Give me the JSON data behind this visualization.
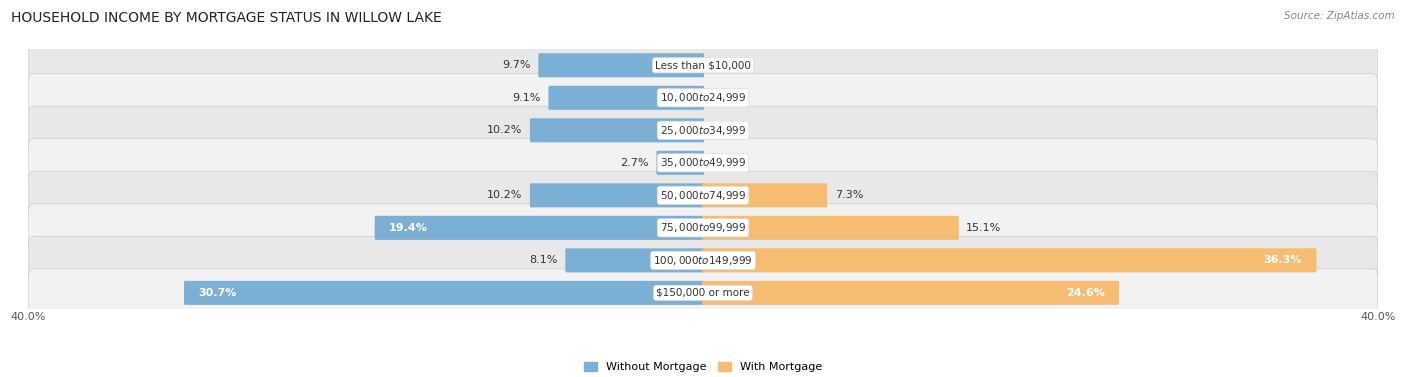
{
  "title": "HOUSEHOLD INCOME BY MORTGAGE STATUS IN WILLOW LAKE",
  "source": "Source: ZipAtlas.com",
  "categories": [
    "Less than $10,000",
    "$10,000 to $24,999",
    "$25,000 to $34,999",
    "$35,000 to $49,999",
    "$50,000 to $74,999",
    "$75,000 to $99,999",
    "$100,000 to $149,999",
    "$150,000 or more"
  ],
  "without_mortgage": [
    9.7,
    9.1,
    10.2,
    2.7,
    10.2,
    19.4,
    8.1,
    30.7
  ],
  "with_mortgage": [
    0.0,
    0.0,
    0.0,
    0.0,
    7.3,
    15.1,
    36.3,
    24.6
  ],
  "axis_max": 40.0,
  "color_without": "#7bafd4",
  "color_with": "#f5bc72",
  "row_colors": [
    "#e8e8e8",
    "#f2f2f2"
  ],
  "title_fontsize": 10,
  "source_fontsize": 7.5,
  "label_fontsize": 8,
  "category_fontsize": 7.5,
  "legend_fontsize": 8,
  "tick_fontsize": 8,
  "value_label_inside_color": "#ffffff",
  "value_label_outside_color": "#333333"
}
